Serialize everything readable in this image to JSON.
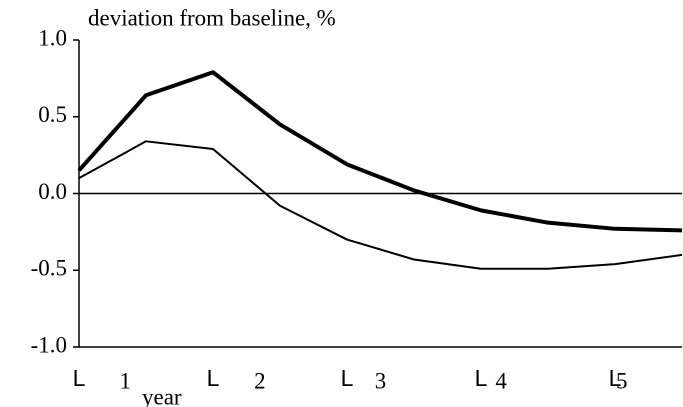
{
  "chart_data": {
    "type": "line",
    "title": "deviation from baseline, %",
    "x": [
      0,
      0.5,
      1,
      1.5,
      2,
      2.5,
      3,
      3.5,
      4,
      4.5
    ],
    "series": [
      {
        "color": "#000000",
        "width": 4,
        "values": [
          0.15,
          0.64,
          0.79,
          0.45,
          0.19,
          0.02,
          -0.11,
          -0.19,
          -0.23,
          -0.24
        ]
      },
      {
        "color": "#000000",
        "width": 2,
        "values": [
          0.1,
          0.34,
          0.29,
          -0.08,
          -0.3,
          -0.43,
          -0.49,
          -0.49,
          -0.46,
          -0.4
        ]
      }
    ],
    "xlim": [
      0,
      4.5
    ],
    "xticks": [
      {
        "value": 0,
        "label": "L"
      },
      {
        "value": 1,
        "label": "L"
      },
      {
        "value": 2,
        "label": "L"
      },
      {
        "value": 3,
        "label": "L"
      },
      {
        "value": 4,
        "label": "L"
      }
    ],
    "year_labels": [
      "1",
      "2",
      "3",
      "4",
      "5"
    ],
    "year_caption": "year",
    "ylim": [
      -1,
      1
    ],
    "yticks": [
      {
        "value": 1,
        "label": "1.0"
      },
      {
        "value": 0.5,
        "label": "0.5"
      },
      {
        "value": 0,
        "label": "0.0"
      },
      {
        "value": -0.5,
        "label": "-0.5"
      },
      {
        "value": -1,
        "label": "-1.0"
      }
    ],
    "zero_line": true
  }
}
